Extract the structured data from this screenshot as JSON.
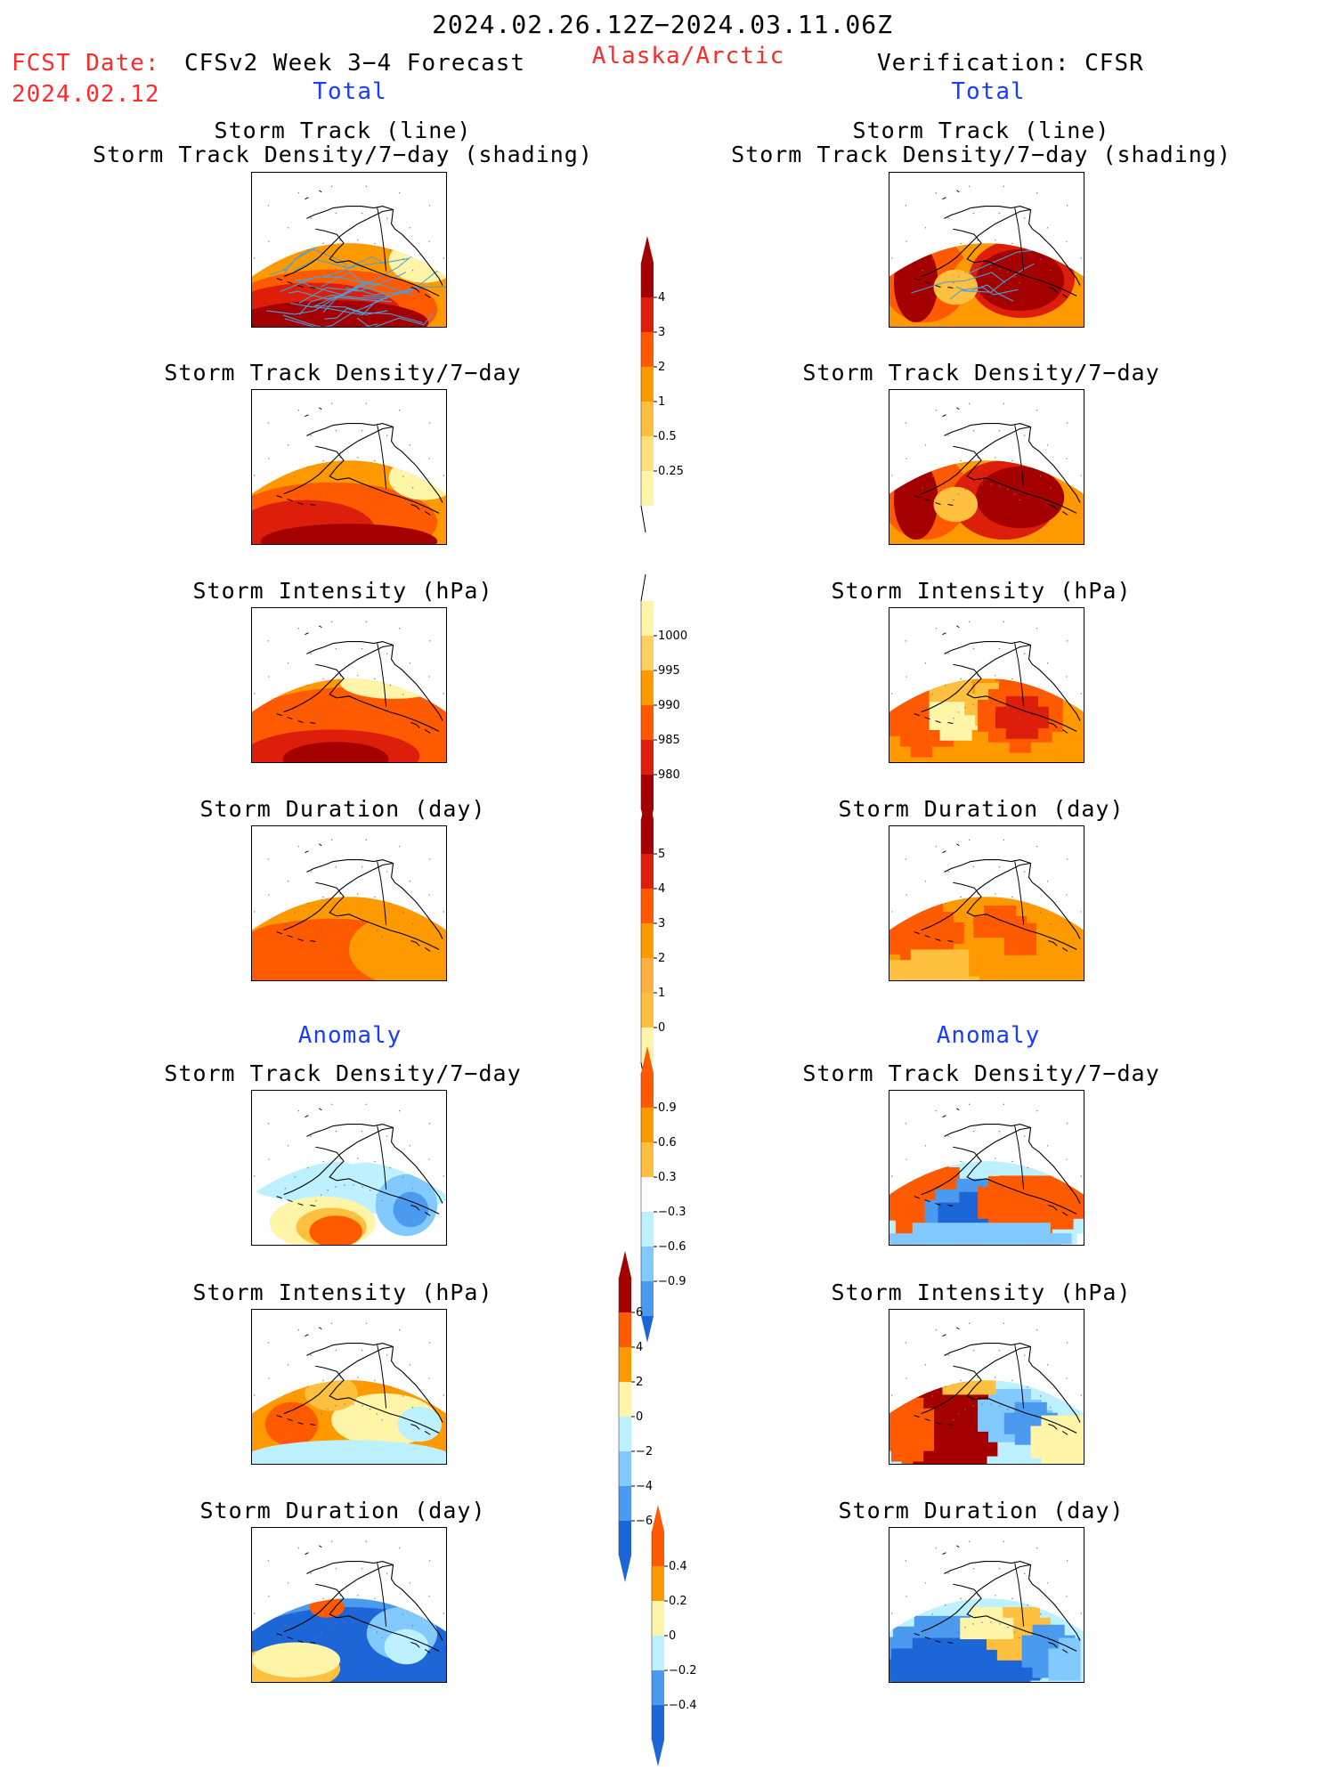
{
  "header": {
    "period": "2024.02.26.12Z−2024.03.11.06Z",
    "fcst_label": "FCST Date:",
    "fcst_date": "2024.02.12",
    "left_title": "CFSv2 Week 3−4 Forecast",
    "region": "Alaska/Arctic",
    "right_title": "Verification: CFSR",
    "total_left": "Total",
    "total_right": "Total",
    "anomaly_left": "Anomaly",
    "anomaly_right": "Anomaly"
  },
  "colors": {
    "dark_red": "#a50000",
    "red": "#dc1e0a",
    "orange_red": "#ff5a00",
    "orange": "#ff9900",
    "light_orange": "#ffc040",
    "pale_yellow": "#fff5a8",
    "light_cyan": "#bdf1ff",
    "light_blue": "#82c9ff",
    "mid_blue": "#4a9bf0",
    "blue": "#1d66d8",
    "track_line": "#4aa0d8"
  },
  "panels": {
    "row1_line1": "Storm Track (line)",
    "row1_line2": "Storm Track Density/7−day (shading)",
    "density": "Storm Track Density/7−day",
    "intensity": "Storm Intensity (hPa)",
    "duration": "Storm Duration (day)"
  },
  "colorbars": {
    "density_total": [
      "4",
      "3",
      "2",
      "1",
      "0.5",
      "0.25"
    ],
    "intensity_total": [
      "1000",
      "995",
      "990",
      "985",
      "980"
    ],
    "duration_total": [
      "5",
      "4",
      "3",
      "2",
      "1",
      "0"
    ],
    "density_anom": [
      "0.9",
      "0.6",
      "0.3",
      "−0.3",
      "−0.6",
      "−0.9"
    ],
    "intensity_anom": [
      "6",
      "4",
      "2",
      "0",
      "−2",
      "−4",
      "−6"
    ],
    "duration_anom": [
      "0.4",
      "0.2",
      "0",
      "−0.2",
      "−0.4"
    ]
  },
  "chart_data": [
    {
      "type": "heatmap",
      "title": "Storm Track (line) / Storm Track Density/7−day (shading)",
      "source": "CFSv2 Week 3−4 Forecast",
      "levels": [
        0.25,
        0.5,
        1,
        2,
        3,
        4
      ]
    },
    {
      "type": "heatmap",
      "title": "Storm Track (line) / Storm Track Density/7−day (shading)",
      "source": "Verification: CFSR",
      "levels": [
        0.25,
        0.5,
        1,
        2,
        3,
        4
      ]
    },
    {
      "type": "heatmap",
      "title": "Storm Track Density/7−day",
      "source": "CFSv2 Week 3−4 Forecast",
      "levels": [
        0.25,
        0.5,
        1,
        2,
        3,
        4
      ]
    },
    {
      "type": "heatmap",
      "title": "Storm Track Density/7−day",
      "source": "Verification: CFSR",
      "levels": [
        0.25,
        0.5,
        1,
        2,
        3,
        4
      ]
    },
    {
      "type": "heatmap",
      "title": "Storm Intensity (hPa)",
      "source": "CFSv2 Week 3−4 Forecast",
      "levels": [
        980,
        985,
        990,
        995,
        1000
      ]
    },
    {
      "type": "heatmap",
      "title": "Storm Intensity (hPa)",
      "source": "Verification: CFSR",
      "levels": [
        980,
        985,
        990,
        995,
        1000
      ]
    },
    {
      "type": "heatmap",
      "title": "Storm Duration (day)",
      "source": "CFSv2 Week 3−4 Forecast",
      "levels": [
        0,
        1,
        2,
        3,
        4,
        5
      ]
    },
    {
      "type": "heatmap",
      "title": "Storm Duration (day)",
      "source": "Verification: CFSR",
      "levels": [
        0,
        1,
        2,
        3,
        4,
        5
      ]
    },
    {
      "type": "heatmap",
      "title": "Anomaly Storm Track Density/7−day",
      "source": "CFSv2 Week 3−4 Forecast",
      "levels": [
        -0.9,
        -0.6,
        -0.3,
        0.3,
        0.6,
        0.9
      ]
    },
    {
      "type": "heatmap",
      "title": "Anomaly Storm Track Density/7−day",
      "source": "Verification: CFSR",
      "levels": [
        -0.9,
        -0.6,
        -0.3,
        0.3,
        0.6,
        0.9
      ]
    },
    {
      "type": "heatmap",
      "title": "Anomaly Storm Intensity (hPa)",
      "source": "CFSv2 Week 3−4 Forecast",
      "levels": [
        -6,
        -4,
        -2,
        0,
        2,
        4,
        6
      ]
    },
    {
      "type": "heatmap",
      "title": "Anomaly Storm Intensity (hPa)",
      "source": "Verification: CFSR",
      "levels": [
        -6,
        -4,
        -2,
        0,
        2,
        4,
        6
      ]
    },
    {
      "type": "heatmap",
      "title": "Anomaly Storm Duration (day)",
      "source": "CFSv2 Week 3−4 Forecast",
      "levels": [
        -0.4,
        -0.2,
        0,
        0.2,
        0.4
      ]
    },
    {
      "type": "heatmap",
      "title": "Anomaly Storm Duration (day)",
      "source": "Verification: CFSR",
      "levels": [
        -0.4,
        -0.2,
        0,
        0.2,
        0.4
      ]
    }
  ]
}
